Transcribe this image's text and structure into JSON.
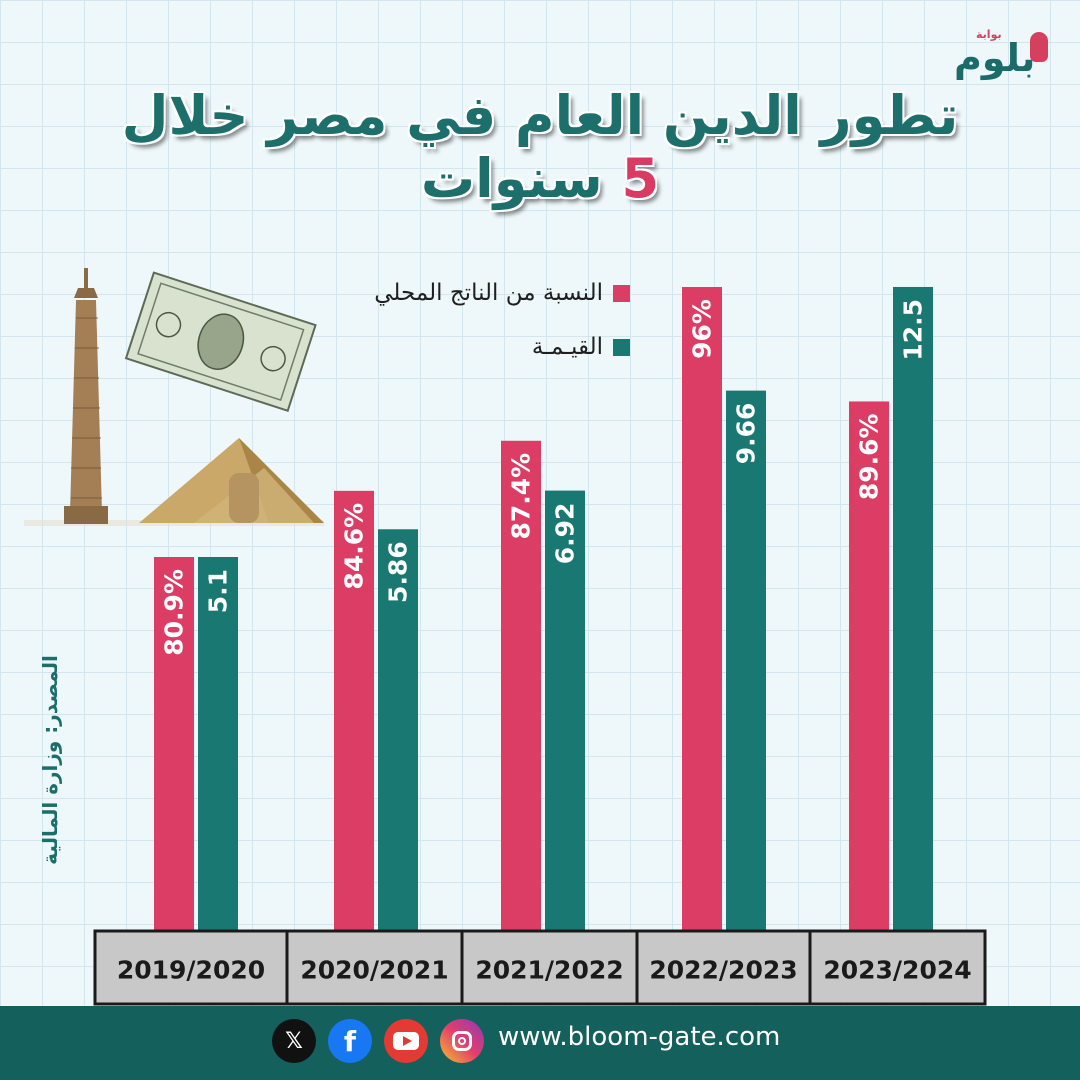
{
  "logo": {
    "text": "بلوم",
    "tagline": "بوابة"
  },
  "title": {
    "before": "تطور الدين العام في مصر خلال ",
    "number": "5",
    "after": " سنوات"
  },
  "legend": [
    {
      "label": "النسبة من الناتج المحلي",
      "color": "#dc3d65"
    },
    {
      "label": "القيـمـة",
      "color": "#1a7872"
    }
  ],
  "source": "المصدر: وزارة المالية",
  "chart_data": {
    "type": "bar",
    "categories": [
      "2019/2020",
      "2020/2021",
      "2021/2022",
      "2022/2023",
      "2023/2024"
    ],
    "series": [
      {
        "name": "النسبة من الناتج المحلي",
        "color": "#dc3d65",
        "values": [
          80.9,
          84.6,
          87.4,
          96,
          89.6
        ],
        "labels": [
          "80.9%",
          "84.6%",
          "87.4%",
          "96%",
          "89.6%"
        ]
      },
      {
        "name": "القيـمـة",
        "color": "#1a7872",
        "values": [
          5.1,
          5.86,
          6.92,
          9.66,
          12.5
        ],
        "labels": [
          "5.1",
          "5.86",
          "6.92",
          "9.66",
          "12.5"
        ]
      }
    ],
    "title": "تطور الدين العام في مصر خلال 5 سنوات",
    "grid": true,
    "legend_position": "top"
  },
  "footer": {
    "website": "www.bloom-gate.com",
    "socials": [
      {
        "icon": "x-icon",
        "glyph": "𝕏"
      },
      {
        "icon": "facebook-icon",
        "glyph": "f"
      },
      {
        "icon": "youtube-icon",
        "glyph": ""
      },
      {
        "icon": "instagram-icon",
        "glyph": ""
      }
    ]
  }
}
